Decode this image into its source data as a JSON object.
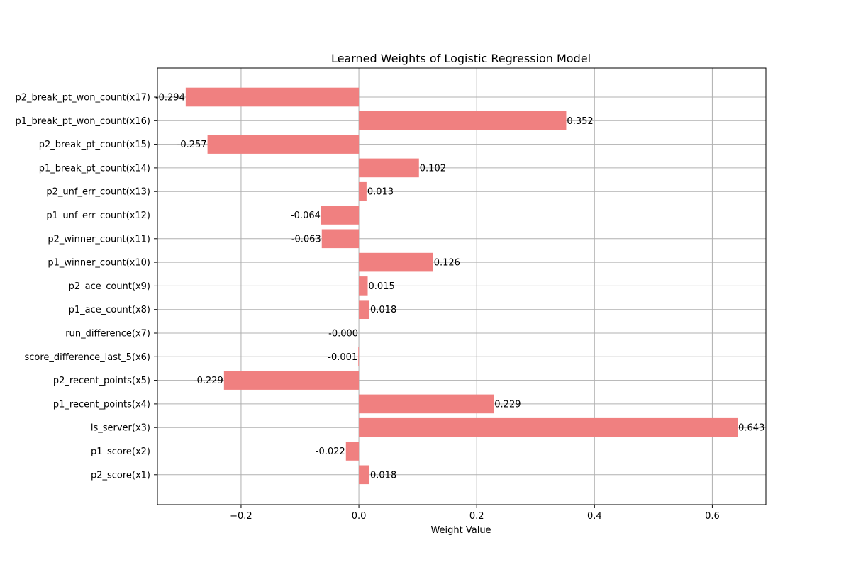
{
  "chart_data": {
    "type": "bar",
    "orientation": "horizontal",
    "title": "Learned Weights of Logistic Regression Model",
    "xlabel": "Weight Value",
    "ylabel": "",
    "xlim": [
      -0.342,
      0.691
    ],
    "xticks": [
      -0.2,
      0.0,
      0.2,
      0.4,
      0.6
    ],
    "xtick_labels": [
      "−0.2",
      "0.0",
      "0.2",
      "0.4",
      "0.6"
    ],
    "grid": true,
    "bar_color": "#f08080",
    "categories": [
      "p2_score(x1)",
      "p1_score(x2)",
      "is_server(x3)",
      "p1_recent_points(x4)",
      "p2_recent_points(x5)",
      "score_difference_last_5(x6)",
      "run_difference(x7)",
      "p1_ace_count(x8)",
      "p2_ace_count(x9)",
      "p1_winner_count(x10)",
      "p2_winner_count(x11)",
      "p1_unf_err_count(x12)",
      "p2_unf_err_count(x13)",
      "p1_break_pt_count(x14)",
      "p2_break_pt_count(x15)",
      "p1_break_pt_won_count(x16)",
      "p2_break_pt_won_count(x17)"
    ],
    "values": [
      0.018,
      -0.022,
      0.643,
      0.229,
      -0.229,
      -0.001,
      -0.0,
      0.018,
      0.015,
      0.126,
      -0.063,
      -0.064,
      0.013,
      0.102,
      -0.257,
      0.352,
      -0.294
    ],
    "value_labels": [
      "0.018",
      "-0.022",
      "0.643",
      "0.229",
      "-0.229",
      "-0.001",
      "-0.000",
      "0.018",
      "0.015",
      "0.126",
      "-0.063",
      "-0.064",
      "0.013",
      "0.102",
      "-0.257",
      "0.352",
      "-0.294"
    ]
  }
}
